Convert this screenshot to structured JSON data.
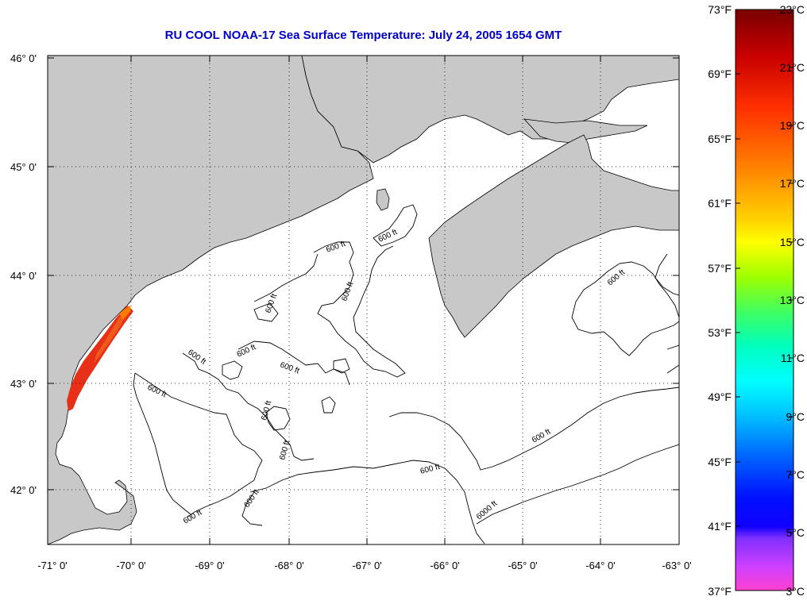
{
  "title": "RU COOL  NOAA-17  Sea Surface Temperature:  July 24, 2005 1654 GMT",
  "map": {
    "lat_labels": [
      "46° 0'",
      "45° 0'",
      "44° 0'",
      "43° 0'",
      "42° 0'"
    ],
    "lon_labels": [
      "-71° 0'",
      "-70° 0'",
      "-69° 0'",
      "-68° 0'",
      "-67° 0'",
      "-66° 0'",
      "-65° 0'",
      "-64° 0'",
      "-63° 0'"
    ],
    "contour_labels": [
      "600 ft",
      "600 ft",
      "600 ft",
      "600 ft",
      "600 ft",
      "600 ft",
      "600 ft",
      "600 ft",
      "600 ft",
      "600 ft",
      "600 ft",
      "600 ft",
      "600 ft",
      "600 ft",
      "600 ft",
      "6000 ft"
    ],
    "colors": {
      "land": "#c8c8c8",
      "water": "#ffffff",
      "coast": "#000000",
      "grid": "#000000",
      "sst": "#e83018"
    }
  },
  "colorbar": {
    "fahrenheit_labels": [
      "73°F",
      "69°F",
      "65°F",
      "61°F",
      "57°F",
      "53°F",
      "49°F",
      "45°F",
      "41°F",
      "37°F"
    ],
    "celsius_labels": [
      "23°C",
      "21°C",
      "19°C",
      "17°C",
      "15°C",
      "13°C",
      "11°C",
      "9°C",
      "7°C",
      "5°C",
      "3°C"
    ],
    "gradient_colors": [
      "#800000",
      "#e00000",
      "#ff4000",
      "#ff8000",
      "#ffc000",
      "#ffff00",
      "#c0ff00",
      "#40ff40",
      "#00ffa0",
      "#00ffff",
      "#00c0ff",
      "#0080ff",
      "#0040ff",
      "#0000ff",
      "#0000e0",
      "#8040ff",
      "#c040ff",
      "#ff40ff",
      "#ff40e0"
    ]
  }
}
